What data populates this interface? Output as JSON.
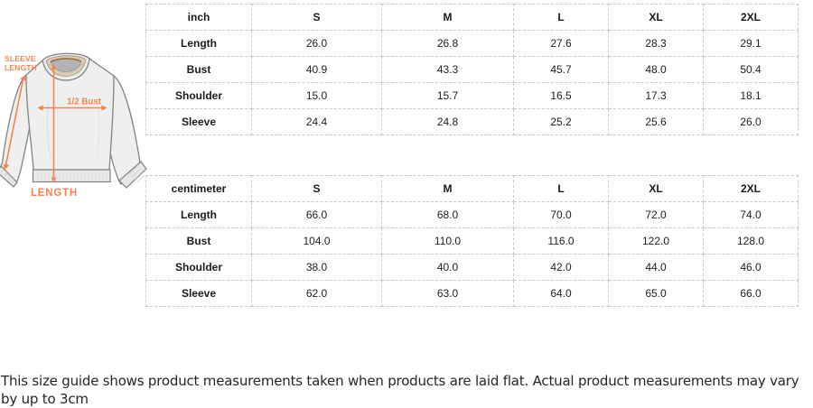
{
  "accent_color": "#F6834D",
  "diagram": {
    "name": "sweatshirt-measurement-diagram",
    "labels": {
      "sleeve_length_line1": "SLEEVE",
      "sleeve_length_line2": "LENGTH",
      "half_bust": "1/2 Bust",
      "length": "LENGTH"
    }
  },
  "tables": [
    {
      "unit": "inch",
      "columns": [
        "S",
        "M",
        "L",
        "XL",
        "2XL"
      ],
      "rows": [
        {
          "label": "Length",
          "values": [
            "26.0",
            "26.8",
            "27.6",
            "28.3",
            "29.1"
          ]
        },
        {
          "label": "Bust",
          "values": [
            "40.9",
            "43.3",
            "45.7",
            "48.0",
            "50.4"
          ]
        },
        {
          "label": "Shoulder",
          "values": [
            "15.0",
            "15.7",
            "16.5",
            "17.3",
            "18.1"
          ]
        },
        {
          "label": "Sleeve",
          "values": [
            "24.4",
            "24.8",
            "25.2",
            "25.6",
            "26.0"
          ]
        }
      ]
    },
    {
      "unit": "centimeter",
      "columns": [
        "S",
        "M",
        "L",
        "XL",
        "2XL"
      ],
      "rows": [
        {
          "label": "Length",
          "values": [
            "66.0",
            "68.0",
            "70.0",
            "72.0",
            "74.0"
          ]
        },
        {
          "label": "Bust",
          "values": [
            "104.0",
            "110.0",
            "116.0",
            "122.0",
            "128.0"
          ]
        },
        {
          "label": "Shoulder",
          "values": [
            "38.0",
            "40.0",
            "42.0",
            "44.0",
            "46.0"
          ]
        },
        {
          "label": "Sleeve",
          "values": [
            "62.0",
            "63.0",
            "64.0",
            "65.0",
            "66.0"
          ]
        }
      ]
    }
  ],
  "footnote": "This size guide shows product measurements taken when products are laid flat. Actual product measurements may vary by up to 3cm"
}
